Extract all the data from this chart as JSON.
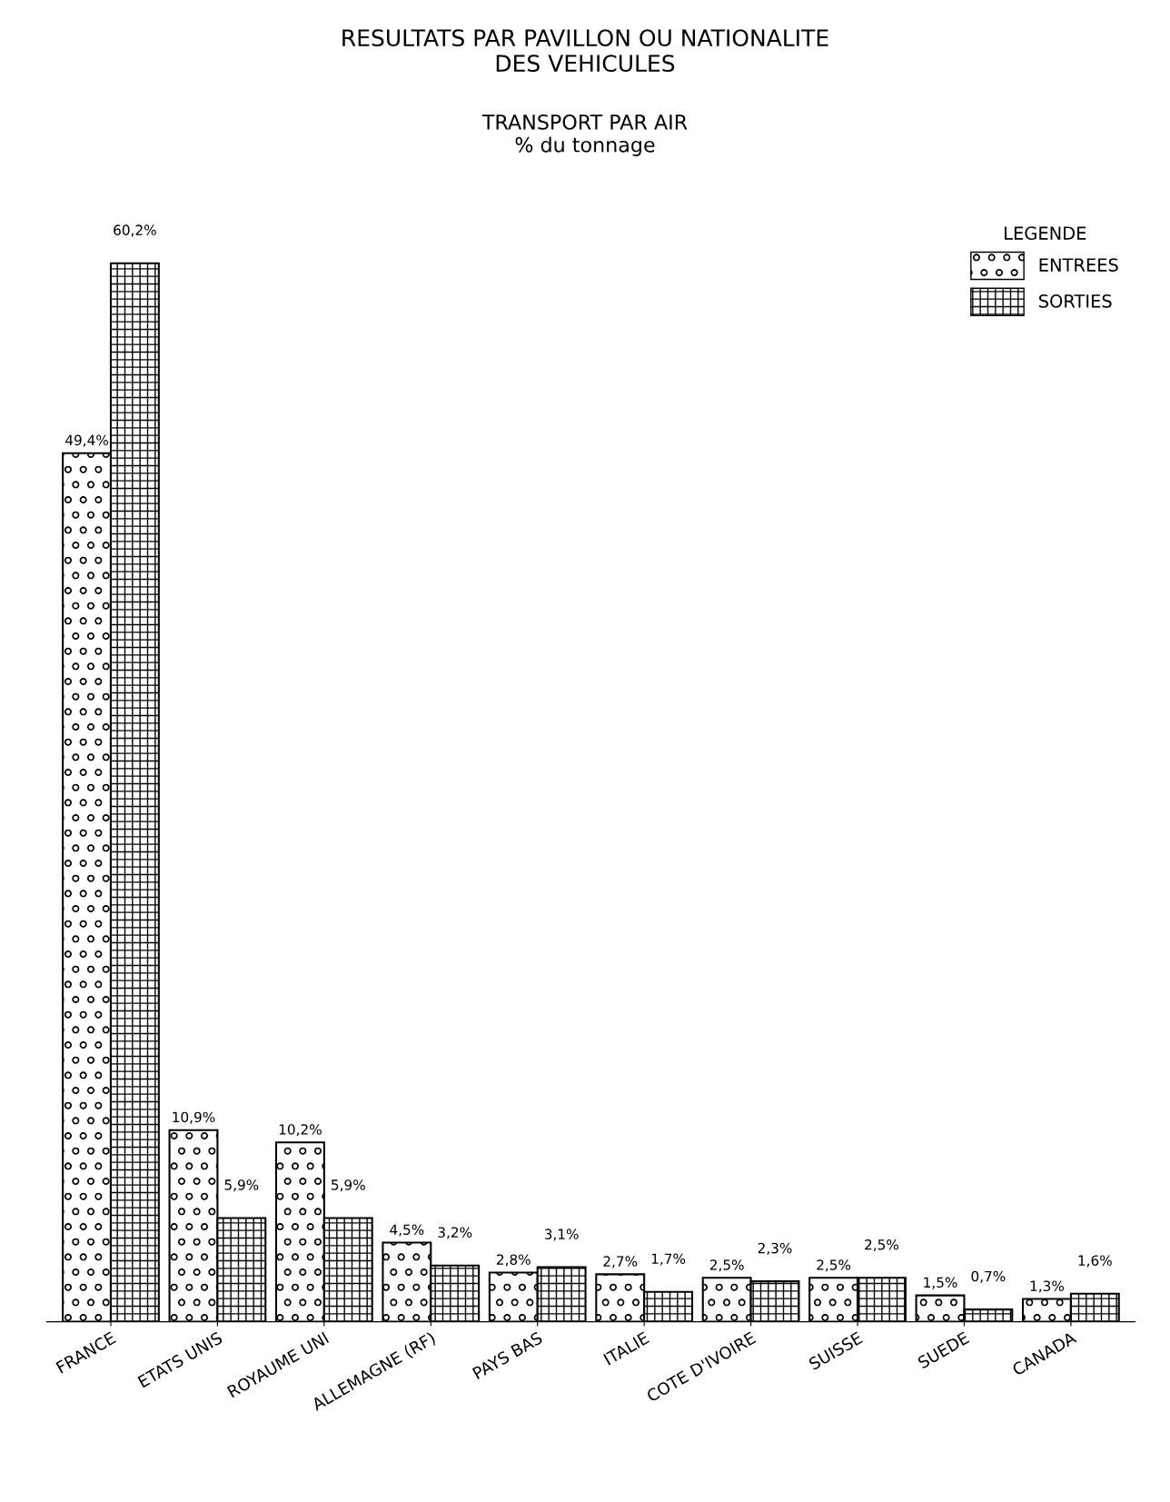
{
  "chart_data": {
    "type": "bar",
    "title": "RESULTATS PAR PAVILLON OU NATIONALITE\nDES VEHICULES",
    "subtitle": "TRANSPORT PAR AIR\n% du tonnage",
    "categories": [
      "FRANCE",
      "ETATS UNIS",
      "ROYAUME UNI",
      "ALLEMAGNE (RF)",
      "PAYS BAS",
      "ITALIE",
      "COTE D'IVOIRE",
      "SUISSE",
      "SUEDE",
      "CANADA"
    ],
    "series": [
      {
        "name": "ENTREES",
        "color": "#000000",
        "values": [
          49.4,
          10.9,
          10.2,
          4.5,
          2.8,
          2.7,
          2.5,
          2.5,
          1.5,
          1.3
        ],
        "value_labels": [
          "49,4%",
          "10,9%",
          "10,2%",
          "4,5%",
          "2,8%",
          "2,7%",
          "2,5%",
          "2,5%",
          "1,5%",
          "1,3%"
        ]
      },
      {
        "name": "SORTIES",
        "color": "#000000",
        "values": [
          60.2,
          5.9,
          5.9,
          3.2,
          3.1,
          1.7,
          2.3,
          2.5,
          0.7,
          1.6
        ],
        "value_labels": [
          "60,2%",
          "5,9%",
          "5,9%",
          "3,2%",
          "3,1%",
          "1,7%",
          "2,3%",
          "2,5%",
          "0,7%",
          "1,6%"
        ]
      }
    ],
    "legend": "top right",
    "legend_title": "LEGENDE",
    "tick_labels": "x"
  }
}
